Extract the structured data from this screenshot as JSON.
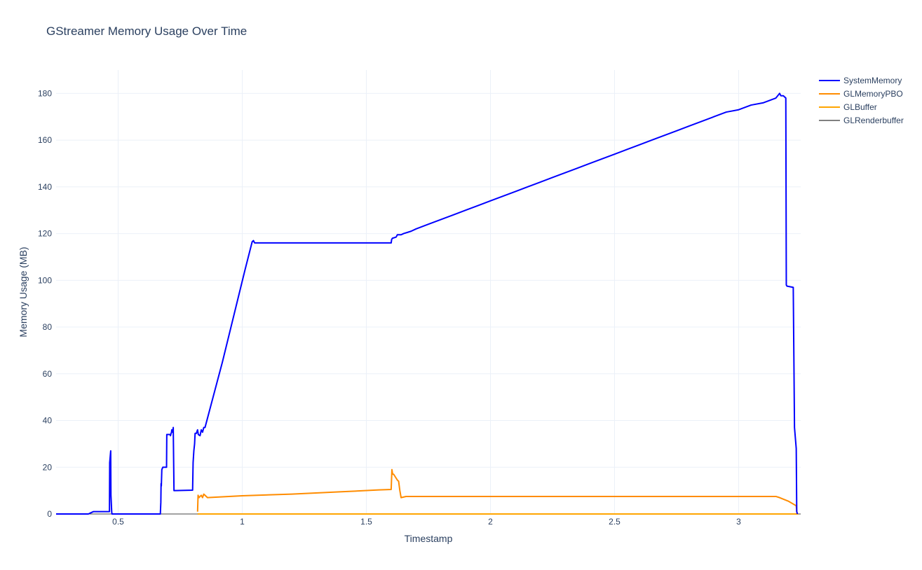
{
  "chart_data": {
    "type": "line",
    "title": "GStreamer Memory Usage Over Time",
    "xlabel": "Timestamp",
    "ylabel": "Memory Usage (MB)",
    "xlim": [
      0.25,
      3.25
    ],
    "ylim": [
      0,
      190
    ],
    "x_ticks": [
      0.5,
      1,
      1.5,
      2,
      2.5,
      3
    ],
    "x_tick_labels": [
      "0.5",
      "1",
      "1.5",
      "2",
      "2.5",
      "3"
    ],
    "y_ticks": [
      0,
      20,
      40,
      60,
      80,
      100,
      120,
      140,
      160,
      180
    ],
    "y_tick_labels": [
      "0",
      "20",
      "40",
      "60",
      "80",
      "100",
      "120",
      "140",
      "160",
      "180"
    ],
    "grid": true,
    "legend_position": "top-right",
    "series": [
      {
        "name": "SystemMemory",
        "color": "#0000ff",
        "x": [
          0.25,
          0.38,
          0.39,
          0.4,
          0.455,
          0.465,
          0.466,
          0.47,
          0.471,
          0.474,
          0.475,
          0.67,
          0.672,
          0.673,
          0.674,
          0.676,
          0.678,
          0.68,
          0.695,
          0.696,
          0.71,
          0.711,
          0.712,
          0.715,
          0.716,
          0.72,
          0.722,
          0.725,
          0.8,
          0.802,
          0.805,
          0.808,
          0.81,
          0.815,
          0.82,
          0.823,
          0.83,
          0.835,
          0.84,
          0.845,
          0.85,
          0.86,
          0.875,
          0.89,
          0.92,
          0.95,
          0.98,
          1.01,
          1.04,
          1.045,
          1.05,
          1.6,
          1.602,
          1.605,
          1.62,
          1.625,
          1.64,
          1.65,
          1.68,
          1.7,
          1.75,
          1.8,
          1.85,
          1.9,
          1.95,
          2.0,
          2.05,
          2.1,
          2.15,
          2.2,
          2.25,
          2.3,
          2.35,
          2.4,
          2.45,
          2.5,
          2.55,
          2.6,
          2.65,
          2.7,
          2.75,
          2.8,
          2.85,
          2.9,
          2.95,
          3.0,
          3.05,
          3.1,
          3.15,
          3.165,
          3.17,
          3.18,
          3.19,
          3.192,
          3.195,
          3.22,
          3.225,
          3.232,
          3.234,
          3.237
        ],
        "y": [
          0,
          0,
          0.5,
          1,
          1,
          1,
          22,
          27,
          8,
          1,
          0,
          0,
          5,
          13,
          12,
          19,
          19.5,
          20,
          20,
          34,
          34,
          33.5,
          34,
          35,
          36,
          35,
          37,
          10,
          10.2,
          22,
          27,
          30,
          34.5,
          34.5,
          36,
          34,
          33.5,
          36,
          35,
          37,
          37,
          41,
          47,
          53,
          65,
          78,
          91,
          104,
          116.5,
          117,
          116,
          116,
          117.5,
          118,
          118.5,
          119.5,
          119.5,
          120,
          121,
          122,
          124,
          126,
          128,
          130,
          132,
          134,
          136,
          138,
          140,
          142,
          144,
          146,
          148,
          150,
          152,
          154,
          156,
          158,
          160,
          162,
          164,
          166,
          168,
          170,
          172,
          173,
          175,
          176,
          178,
          180,
          179,
          179,
          178,
          98,
          97.5,
          97,
          37,
          28,
          1,
          0
        ]
      },
      {
        "name": "GLMemoryPBO",
        "color": "#ff8c00",
        "x": [
          0.82,
          0.822,
          0.826,
          0.83,
          0.835,
          0.84,
          0.845,
          0.86,
          1.0,
          1.2,
          1.4,
          1.55,
          1.6,
          1.603,
          1.606,
          1.61,
          1.625,
          1.63,
          1.635,
          1.64,
          1.66,
          1.68,
          1.7,
          1.75,
          1.8,
          1.85,
          1.9,
          1.95,
          2.0,
          2.05,
          2.1,
          2.15,
          2.2,
          2.25,
          2.3,
          2.35,
          2.4,
          2.45,
          2.5,
          2.55,
          2.6,
          2.65,
          2.7,
          2.75,
          2.8,
          2.85,
          2.9,
          2.95,
          3.0,
          3.05,
          3.1,
          3.15,
          3.165,
          3.2,
          3.232,
          3.234,
          3.236
        ],
        "y": [
          1,
          8,
          7,
          7.5,
          8,
          7,
          8.5,
          7,
          7.8,
          8.5,
          9.5,
          10.3,
          10.5,
          19,
          17,
          17,
          14.5,
          14,
          10,
          7,
          7.5,
          7.5,
          7.5,
          7.5,
          7.5,
          7.5,
          7.5,
          7.5,
          7.5,
          7.5,
          7.5,
          7.5,
          7.5,
          7.5,
          7.5,
          7.5,
          7.5,
          7.5,
          7.5,
          7.5,
          7.5,
          7.5,
          7.5,
          7.5,
          7.5,
          7.5,
          7.5,
          7.5,
          7.5,
          7.5,
          7.5,
          7.5,
          7,
          5.5,
          3.5,
          1,
          0
        ]
      },
      {
        "name": "GLBuffer",
        "color": "#ffa500",
        "x": [
          0.82,
          3.24
        ],
        "y": [
          0,
          0
        ]
      },
      {
        "name": "GLRenderbuffer",
        "color": "#808080",
        "x": [
          0.82,
          3.24
        ],
        "y": [
          0,
          0
        ]
      }
    ]
  }
}
